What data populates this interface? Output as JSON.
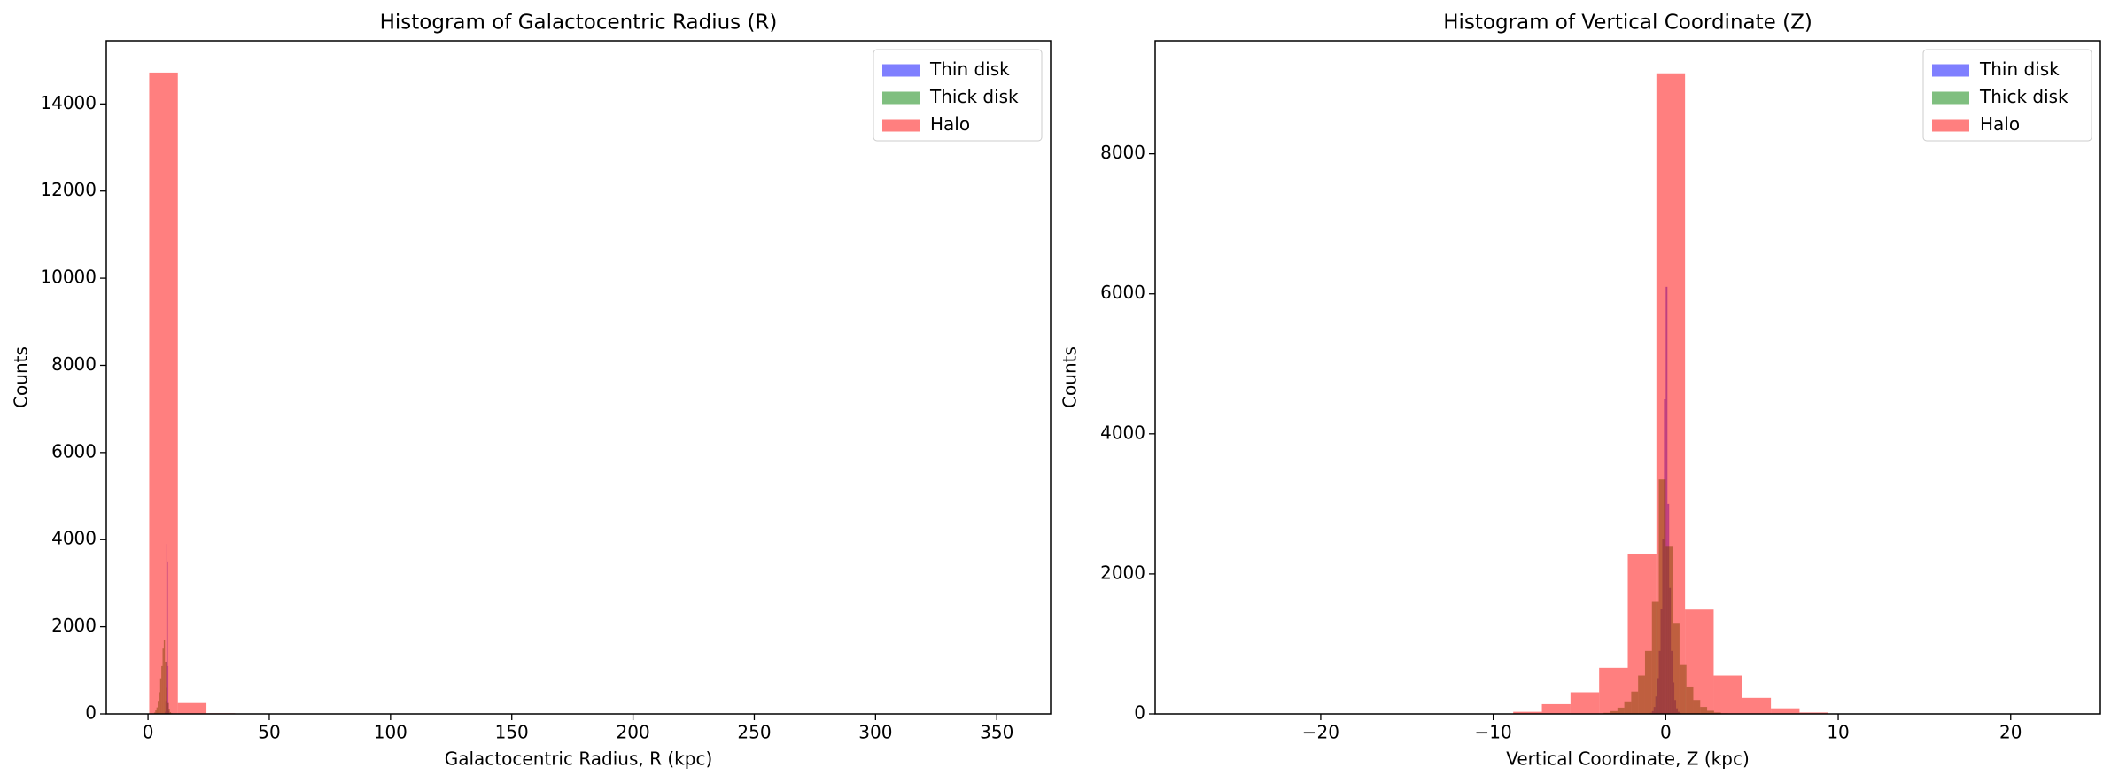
{
  "chart_data": [
    {
      "type": "histogram",
      "title": "Histogram of Galactocentric Radius (R)",
      "xlabel": "Galactocentric Radius, R (kpc)",
      "ylabel": "Counts",
      "alpha": 0.5,
      "legend": "upper right",
      "xlim": [
        -17.2,
        372.2
      ],
      "ylim": [
        0,
        15450
      ],
      "xticks": [
        0,
        50,
        100,
        150,
        200,
        250,
        300,
        350
      ],
      "yticks": [
        0,
        2000,
        4000,
        6000,
        8000,
        10000,
        12000,
        14000
      ],
      "series": [
        {
          "name": "Thin disk",
          "color": "#0000ff",
          "bins": [
            7,
            7.2,
            7.4,
            7.6,
            7.8,
            8,
            8.2,
            8.4,
            8.6,
            8.8,
            9
          ],
          "values": [
            50,
            300,
            1200,
            3900,
            6750,
            3500,
            1100,
            250,
            60,
            10
          ]
        },
        {
          "name": "Thick disk",
          "color": "#008000",
          "bins": [
            2,
            2.5,
            3,
            3.5,
            4,
            4.5,
            5,
            5.5,
            6,
            6.5,
            7,
            7.5,
            8,
            8.5,
            9,
            9.5,
            10,
            10.5,
            11
          ],
          "values": [
            10,
            30,
            80,
            150,
            300,
            500,
            800,
            1100,
            1500,
            1700,
            1200,
            600,
            250,
            100,
            40,
            15,
            5,
            2
          ]
        },
        {
          "name": "Halo",
          "color": "#ff0000",
          "bins": [
            0.5,
            12.3,
            24.1,
            35.9,
            47.7,
            59.5,
            71.3,
            83.1,
            94.9,
            106.7,
            118.5,
            130.3,
            142.1,
            153.9,
            165.7,
            177.5,
            189.3,
            201.1,
            212.9,
            224.7,
            236.5,
            248.3,
            260.1,
            271.9,
            283.7,
            295.5,
            307.3,
            319.1,
            330.9,
            342.7,
            354.5
          ],
          "values": [
            14720,
            250,
            15,
            5,
            2,
            1,
            1,
            0,
            0,
            0,
            0,
            0,
            0,
            0,
            0,
            0,
            0,
            0,
            0,
            0,
            0,
            0,
            0,
            0,
            0,
            0,
            0,
            0,
            0,
            1
          ]
        }
      ]
    },
    {
      "type": "histogram",
      "title": "Histogram of Vertical Coordinate (Z)",
      "xlabel": "Vertical Coordinate, Z (kpc)",
      "ylabel": "Counts",
      "alpha": 0.5,
      "legend": "upper right",
      "xlim": [
        -29.6,
        25.2
      ],
      "ylim": [
        0,
        9615
      ],
      "xticks": [
        {
          "value": -20,
          "label": "−20"
        },
        {
          "value": -10,
          "label": "−10"
        },
        0,
        10,
        20
      ],
      "yticks": [
        0,
        2000,
        4000,
        6000,
        8000
      ],
      "series": [
        {
          "name": "Thin disk",
          "color": "#0000ff",
          "bins": [
            -1,
            -0.9,
            -0.8,
            -0.7,
            -0.6,
            -0.5,
            -0.4,
            -0.3,
            -0.2,
            -0.1,
            0,
            0.1,
            0.2,
            0.3,
            0.4,
            0.5,
            0.6,
            0.7,
            0.8,
            0.9,
            1
          ],
          "values": [
            5,
            15,
            40,
            100,
            250,
            500,
            900,
            1500,
            2500,
            4500,
            6100,
            3000,
            1800,
            900,
            450,
            200,
            80,
            30,
            10,
            5
          ]
        },
        {
          "name": "Thick disk",
          "color": "#008000",
          "bins": [
            -4,
            -3.6,
            -3.2,
            -2.8,
            -2.4,
            -2,
            -1.6,
            -1.2,
            -0.8,
            -0.4,
            0,
            0.4,
            0.8,
            1.2,
            1.6,
            2,
            2.4,
            2.8,
            3.2,
            3.6,
            4
          ],
          "values": [
            5,
            15,
            40,
            90,
            180,
            320,
            550,
            900,
            1600,
            3350,
            2400,
            1300,
            700,
            380,
            200,
            100,
            45,
            20,
            8,
            3
          ]
        },
        {
          "name": "Halo",
          "color": "#ff0000",
          "bins": [
            -27.1,
            -25.44,
            -23.78,
            -22.12,
            -20.46,
            -18.8,
            -17.14,
            -15.48,
            -13.82,
            -12.16,
            -10.5,
            -8.84,
            -7.18,
            -5.52,
            -3.86,
            -2.2,
            -0.54,
            1.12,
            2.78,
            4.44,
            6.1,
            7.76,
            9.42,
            11.08,
            12.74,
            14.4,
            16.06,
            17.72,
            19.38,
            21.04,
            22.7
          ],
          "values": [
            1,
            0,
            0,
            0,
            0,
            0,
            0,
            0,
            0,
            2,
            5,
            30,
            140,
            310,
            660,
            2290,
            9150,
            1490,
            550,
            230,
            80,
            20,
            5,
            1,
            0,
            0,
            0,
            0,
            0,
            1
          ]
        }
      ]
    }
  ]
}
